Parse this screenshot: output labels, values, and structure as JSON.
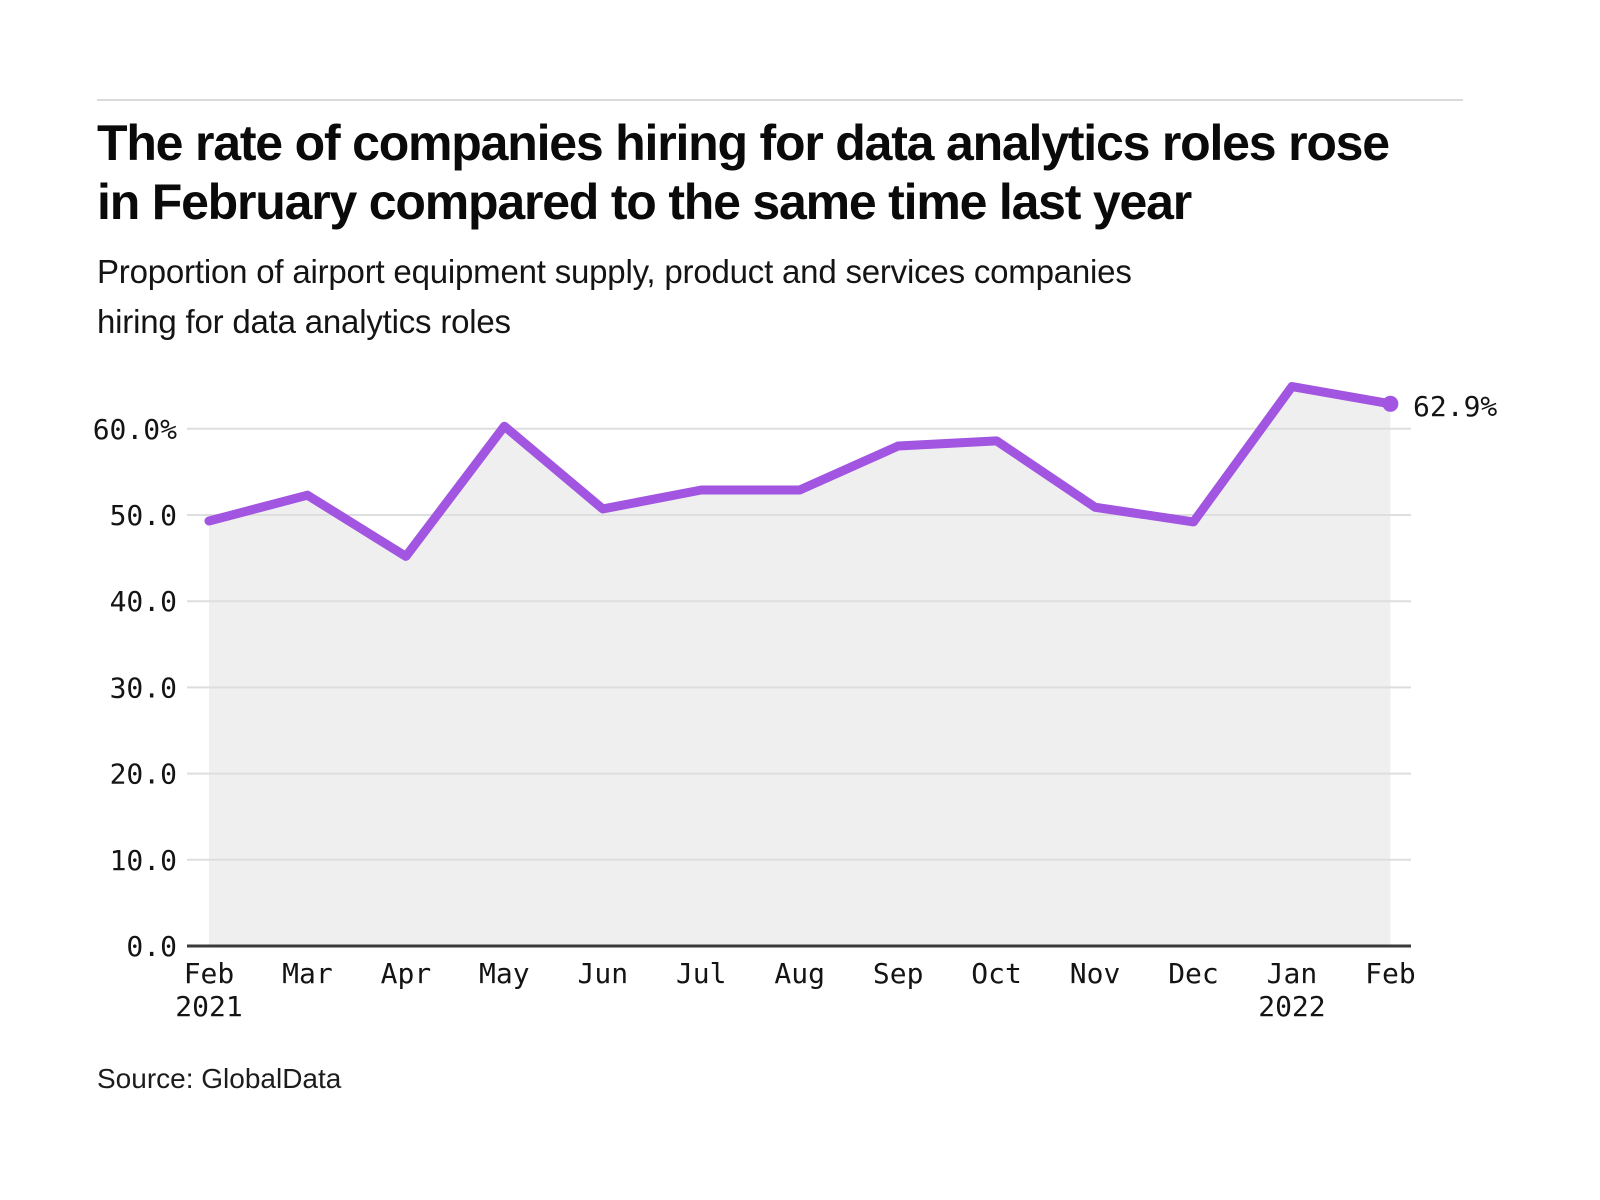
{
  "chart_data": {
    "type": "line",
    "title": "The rate of companies hiring for data analytics roles rose\nin February compared to the same time last year",
    "subtitle": "Proportion of airport equipment supply, product and services companies\nhiring for data analytics roles",
    "source": "Source: GlobalData",
    "categories": [
      "Feb",
      "Mar",
      "Apr",
      "May",
      "Jun",
      "Jul",
      "Aug",
      "Sep",
      "Oct",
      "Nov",
      "Dec",
      "Jan",
      "Feb"
    ],
    "category_year_labels": [
      {
        "index": 0,
        "label": "2021"
      },
      {
        "index": 11,
        "label": "2022"
      }
    ],
    "values": [
      49.3,
      52.3,
      45.2,
      60.3,
      50.7,
      52.9,
      52.9,
      58.0,
      58.6,
      50.9,
      49.2,
      64.9,
      62.9
    ],
    "end_label": "62.9%",
    "yticks": [
      {
        "value": 0,
        "label": "0.0"
      },
      {
        "value": 10,
        "label": "10.0"
      },
      {
        "value": 20,
        "label": "20.0"
      },
      {
        "value": 30,
        "label": "30.0"
      },
      {
        "value": 40,
        "label": "40.0"
      },
      {
        "value": 50,
        "label": "50.0"
      },
      {
        "value": 60,
        "label": "60.0%"
      }
    ],
    "ylim": [
      0,
      70
    ],
    "xlabel": "",
    "ylabel": "",
    "grid": true,
    "legend": false,
    "area_fill": true,
    "end_marker": true,
    "colors": {
      "line": "#A155E0",
      "area_fill": "#EFEFEF",
      "grid": "#DEDEDE",
      "axis": "#3A3A3A",
      "text": "#141414"
    }
  }
}
